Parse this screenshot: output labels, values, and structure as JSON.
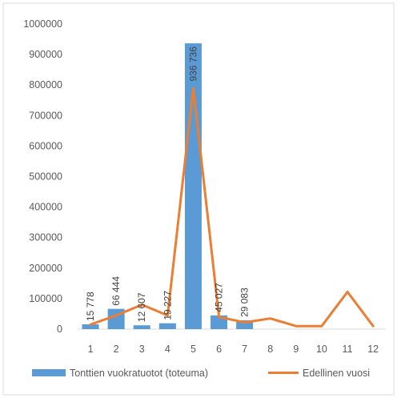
{
  "chart_data": {
    "type": "bar",
    "categories": [
      "1",
      "2",
      "3",
      "4",
      "5",
      "6",
      "7",
      "8",
      "9",
      "10",
      "11",
      "12"
    ],
    "ylim": [
      0,
      1000000
    ],
    "yticks": [
      "0",
      "100000",
      "200000",
      "300000",
      "400000",
      "500000",
      "600000",
      "700000",
      "800000",
      "900000",
      "1000000"
    ],
    "grid": false,
    "legend_position": "bottom",
    "series": [
      {
        "name": "Tonttien vuokratuotot (toteuma)",
        "type": "bar",
        "color": "#5B9BD5",
        "values": [
          15778,
          66444,
          12607,
          19227,
          936736,
          45027,
          29083,
          null,
          null,
          null,
          null,
          null
        ],
        "data_labels": [
          "15 778",
          "66 444",
          "12 607",
          "19 227",
          "936 736",
          "45 027",
          "29 083",
          "",
          "",
          "",
          "",
          ""
        ]
      },
      {
        "name": "Edellinen vuosi",
        "type": "line",
        "color": "#ED7D31",
        "values": [
          15000,
          45000,
          80000,
          45000,
          790000,
          40000,
          22000,
          35000,
          10000,
          10000,
          122000,
          10000
        ]
      }
    ]
  }
}
